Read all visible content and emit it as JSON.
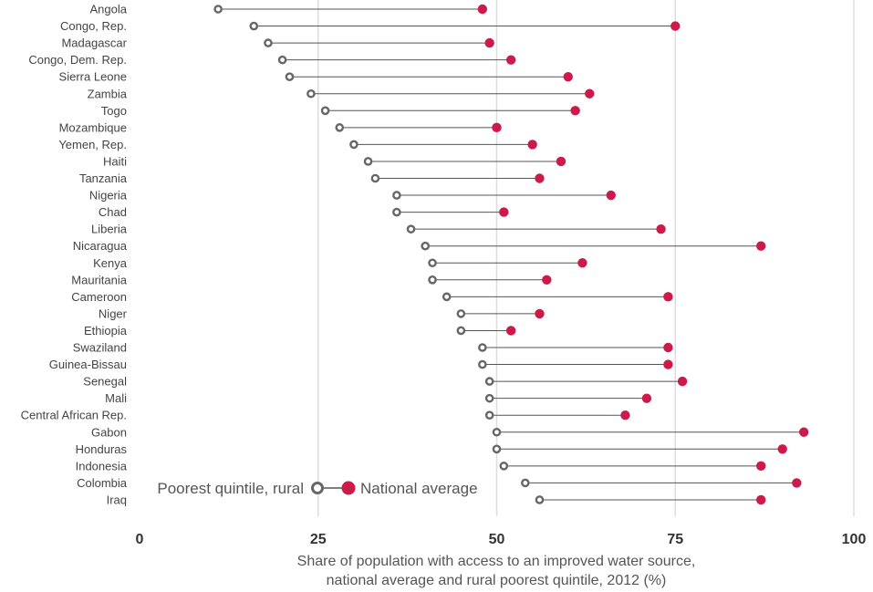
{
  "chart_data": {
    "type": "dot-range",
    "xlabel_line1": "Share of population with access to an improved water source,",
    "xlabel_line2": "national average and rural poorest quintile, 2012 (%)",
    "xlim": [
      0,
      100
    ],
    "xticks": [
      0,
      25,
      50,
      75,
      100
    ],
    "grid": true,
    "legend_placement": "bottom-left",
    "colors": {
      "rural": "#666666",
      "national": "#cc1a4a",
      "connector": "#555555",
      "grid": "#dddddd"
    },
    "series": [
      {
        "name": "Poorest quintile, rural",
        "marker": "hollow-circle"
      },
      {
        "name": "National average",
        "marker": "filled-circle"
      }
    ],
    "categories": [
      "Angola",
      "Congo, Rep.",
      "Madagascar",
      "Congo, Dem. Rep.",
      "Sierra Leone",
      "Zambia",
      "Togo",
      "Mozambique",
      "Yemen, Rep.",
      "Haiti",
      "Tanzania",
      "Nigeria",
      "Chad",
      "Liberia",
      "Nicaragua",
      "Kenya",
      "Mauritania",
      "Cameroon",
      "Niger",
      "Ethiopia",
      "Swaziland",
      "Guinea-Bissau",
      "Senegal",
      "Mali",
      "Central African Rep.",
      "Gabon",
      "Honduras",
      "Indonesia",
      "Colombia",
      "Iraq"
    ],
    "rural": [
      11,
      16,
      18,
      20,
      21,
      24,
      26,
      28,
      30,
      32,
      33,
      36,
      36,
      38,
      40,
      41,
      41,
      43,
      45,
      45,
      48,
      48,
      49,
      49,
      49,
      50,
      50,
      51,
      54,
      56
    ],
    "national": [
      48,
      75,
      49,
      52,
      60,
      63,
      61,
      50,
      55,
      59,
      56,
      66,
      51,
      73,
      87,
      62,
      57,
      74,
      56,
      52,
      74,
      74,
      76,
      71,
      68,
      93,
      90,
      87,
      92,
      87
    ]
  }
}
